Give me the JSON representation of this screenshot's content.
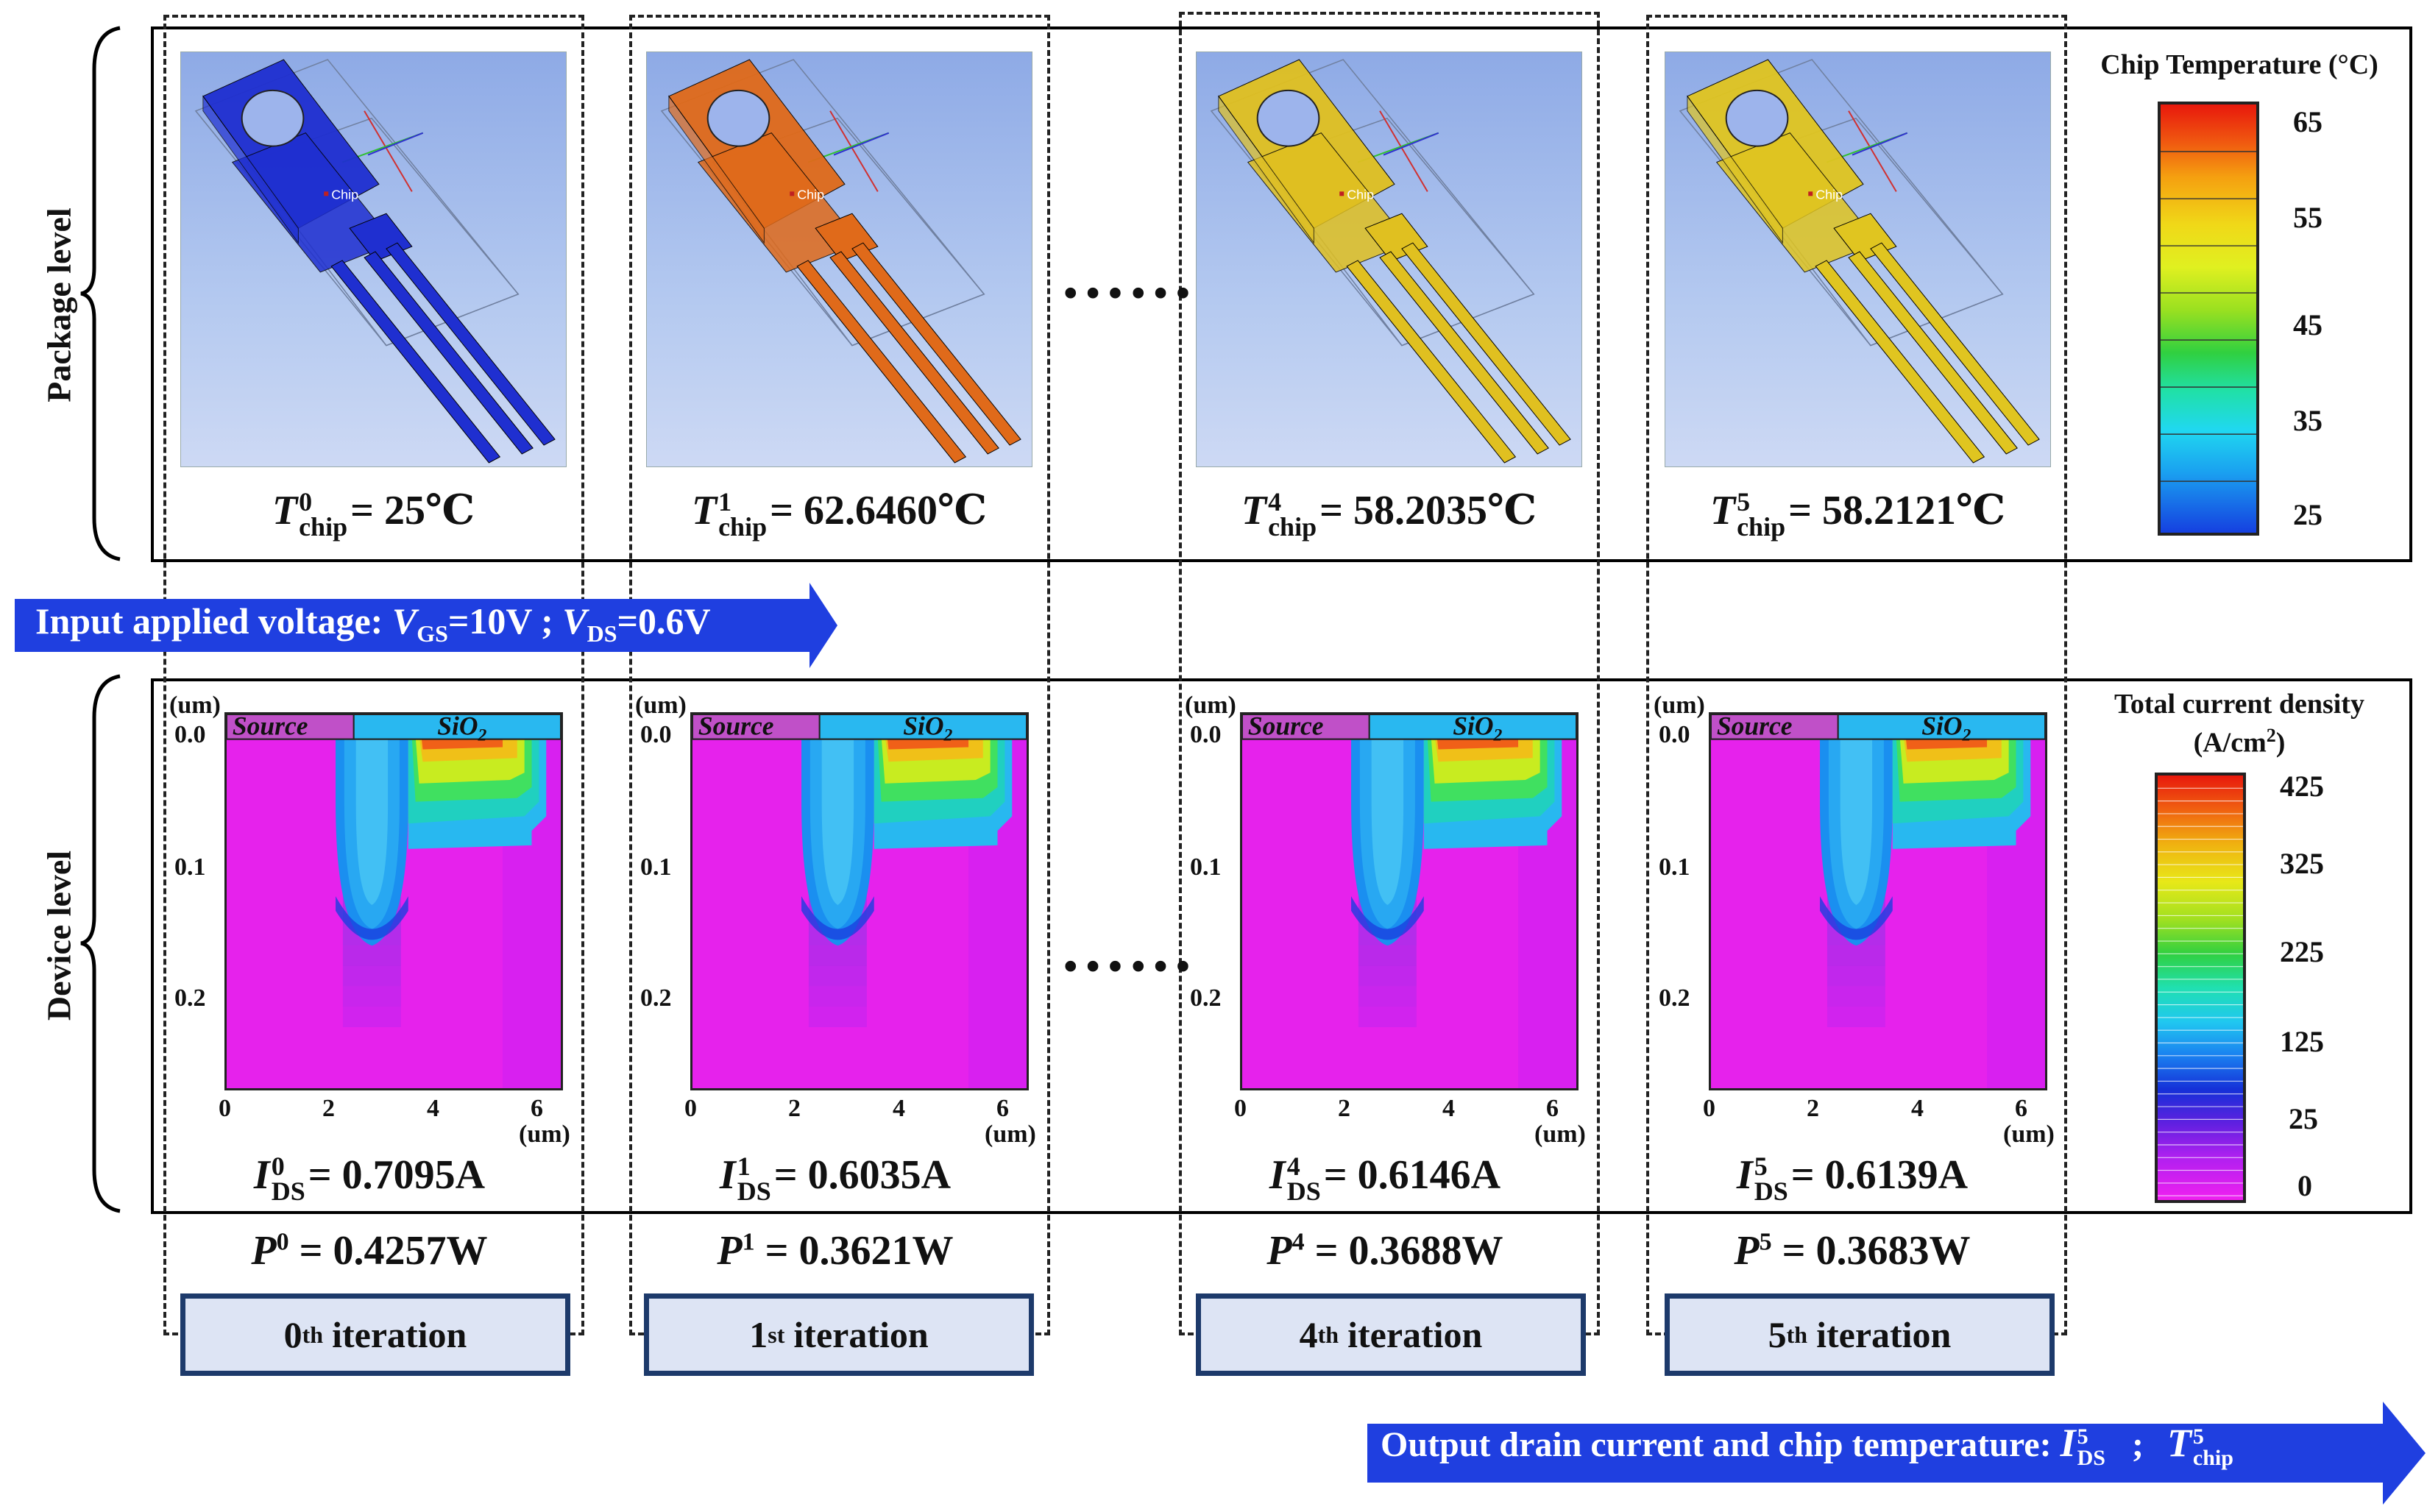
{
  "row_labels": {
    "package": "Package level",
    "device": "Device level"
  },
  "iterations": [
    {
      "label_num": "0",
      "label_sup": "th",
      "label_word": "iteration",
      "temp_sup": "0",
      "temp_value": "= 25℃",
      "id_sup": "0",
      "id_value": "= 0.7095A",
      "p_sup": "0",
      "p_value": "= 0.4257W",
      "pkg_color": "#1f2fd0",
      "pkg_chip_text": "Chip"
    },
    {
      "label_num": "1",
      "label_sup": "st",
      "label_word": "iteration",
      "temp_sup": "1",
      "temp_value": "= 62.6460℃",
      "id_sup": "1",
      "id_value": "= 0.6035A",
      "p_sup": "1",
      "p_value": "= 0.3621W",
      "pkg_color": "#e06a1a",
      "pkg_chip_text": "Chip"
    },
    {
      "label_num": "4",
      "label_sup": "th",
      "label_word": "iteration",
      "temp_sup": "4",
      "temp_value": "= 58.2035℃",
      "id_sup": "4",
      "id_value": "= 0.6146A",
      "p_sup": "4",
      "p_value": "= 0.3688W",
      "pkg_color": "#e0c020",
      "pkg_chip_text": "Chip"
    },
    {
      "label_num": "5",
      "label_sup": "th",
      "label_word": "iteration",
      "temp_sup": "5",
      "temp_value": "= 58.2121℃",
      "id_sup": "5",
      "id_value": "= 0.6139A",
      "p_sup": "5",
      "p_value": "= 0.3683W",
      "pkg_color": "#e0c520",
      "pkg_chip_text": "Chip"
    }
  ],
  "symbols": {
    "T": "T",
    "chip": "chip",
    "I": "I",
    "DS": "DS",
    "P": "P"
  },
  "ellipsis": "……",
  "device_axes": {
    "y_unit": "(um)",
    "x_unit": "(um)",
    "y_ticks": [
      "0.0",
      "0.1",
      "0.2"
    ],
    "x_ticks": [
      "0",
      "2",
      "4",
      "6"
    ],
    "source_label": "Source",
    "sio2_label": "SiO",
    "sio2_sub": "2"
  },
  "input_arrow": {
    "prefix": "Input applied voltage: ",
    "v": "V",
    "gs": "GS",
    "gs_val": "=10V ; ",
    "ds": "DS",
    "ds_val": "=0.6V",
    "color": "#1f3fe0"
  },
  "output_arrow": {
    "prefix": "Output drain current and chip temperature: ",
    "sep": ";",
    "color": "#1f3fe0"
  },
  "temp_colorbar": {
    "title": "Chip Temperature (°C)",
    "ticks": [
      "65",
      "55",
      "45",
      "35",
      "25"
    ]
  },
  "current_colorbar": {
    "title_line1": "Total current density",
    "title_line2": "(A/cm",
    "title_sup": "2",
    "title_end": ")",
    "ticks": [
      "425",
      "325",
      "225",
      "125",
      "25",
      "0"
    ]
  }
}
